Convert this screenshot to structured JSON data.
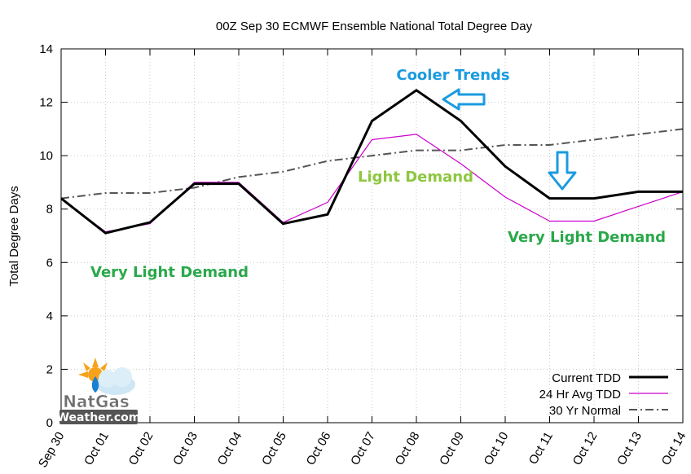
{
  "chart_data": {
    "type": "line",
    "title": "00Z Sep 30 ECMWF Ensemble National Total Degree Day",
    "ylabel": "Total Degree Days",
    "xlabel": "",
    "ylim": [
      0,
      14
    ],
    "yticks": [
      "0",
      "2",
      "4",
      "6",
      "8",
      "10",
      "12",
      "14"
    ],
    "categories": [
      "Sep 30",
      "Oct 01",
      "Oct 02",
      "Oct 03",
      "Oct 04",
      "Oct 05",
      "Oct 06",
      "Oct 07",
      "Oct 08",
      "Oct 09",
      "Oct 10",
      "Oct 11",
      "Oct 12",
      "Oct 13",
      "Oct 14"
    ],
    "grid": true,
    "legend_position": "bottom-right",
    "series": [
      {
        "name": "Current TDD",
        "color": "#000000",
        "style": "solid-thick",
        "values": [
          8.4,
          7.1,
          7.5,
          8.95,
          8.95,
          7.45,
          7.8,
          11.3,
          12.45,
          11.3,
          9.6,
          8.4,
          8.4,
          8.65,
          8.65
        ]
      },
      {
        "name": "24 Hr Avg TDD",
        "color": "#cc00cc",
        "style": "solid-thin",
        "values": [
          8.4,
          7.15,
          7.45,
          9.0,
          9.0,
          7.5,
          8.25,
          10.6,
          10.8,
          9.7,
          8.45,
          7.55,
          7.55,
          8.1,
          8.65
        ]
      },
      {
        "name": "30 Yr Normal",
        "color": "#555555",
        "style": "dash-dot",
        "values": [
          8.4,
          8.6,
          8.6,
          8.8,
          9.2,
          9.4,
          9.8,
          10.0,
          10.2,
          10.2,
          10.4,
          10.4,
          10.6,
          10.8,
          11.0
        ]
      }
    ],
    "annotations": [
      {
        "text": "Cooler Trends",
        "color": "#1a9be0"
      },
      {
        "text": "Light Demand",
        "color": "#8ec63f"
      },
      {
        "text": "Very Light Demand",
        "color": "#2aa84a"
      },
      {
        "text": "Very Light Demand",
        "color": "#2aa84a"
      }
    ],
    "arrow_color": "#1a9be0"
  },
  "logo": {
    "line1": "NatGas",
    "line2": "Weather.com"
  }
}
